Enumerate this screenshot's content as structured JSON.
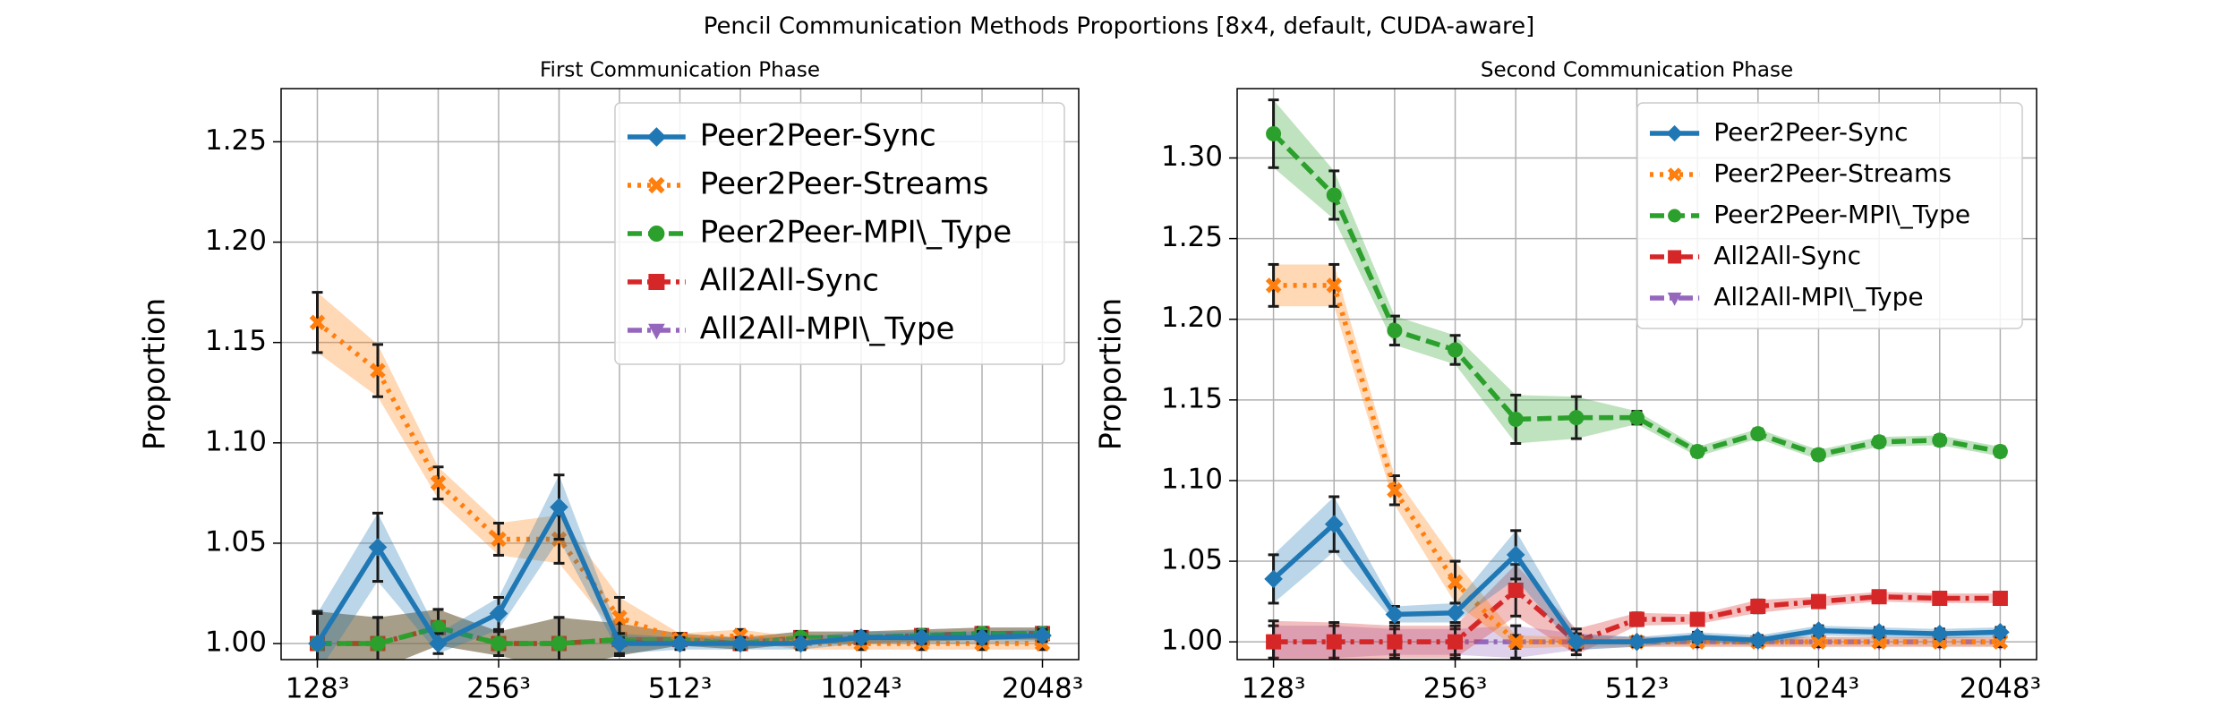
{
  "title": "Pencil Communication Methods Proportions [8x4, default, CUDA-aware]",
  "chart_data": [
    {
      "type": "line",
      "title": "First Communication Phase",
      "y_label": "Proportion",
      "categories": [
        "128³",
        null,
        null,
        "256³",
        null,
        null,
        "512³",
        null,
        null,
        "1024³",
        null,
        null,
        "2048³"
      ],
      "ylim": [
        0.992,
        1.2765
      ],
      "yticks": [
        {
          "value": 1.0,
          "label": "1.00"
        },
        {
          "value": 1.05,
          "label": "1.05"
        },
        {
          "value": 1.1,
          "label": "1.10"
        },
        {
          "value": 1.15,
          "label": "1.15"
        },
        {
          "value": 1.2,
          "label": "1.20"
        },
        {
          "value": 1.25,
          "label": "1.25"
        }
      ],
      "grid": true,
      "legend": "upper right",
      "series": [
        {
          "name": "Peer2Peer-Sync",
          "color": "#1f77b4",
          "marker": "diamond",
          "linestyle": "solid",
          "values": [
            1.0,
            1.048,
            1.0,
            1.015,
            1.068,
            1.0,
            1.0,
            1.0,
            1.0,
            1.003,
            1.003,
            1.003,
            1.004
          ],
          "errors": [
            0.015,
            0.017,
            0.005,
            0.008,
            0.016,
            0.005,
            0.003,
            0.003,
            0.003,
            0.003,
            0.003,
            0.003,
            0.003
          ]
        },
        {
          "name": "Peer2Peer-Streams",
          "color": "#ff7f0e",
          "marker": "x",
          "linestyle": "dotted",
          "values": [
            1.16,
            1.136,
            1.08,
            1.052,
            1.052,
            1.013,
            1.002,
            1.004,
            1.0,
            1.0,
            1.0,
            1.0,
            1.0
          ],
          "errors": [
            0.015,
            0.013,
            0.008,
            0.008,
            0.012,
            0.01,
            0.003,
            0.003,
            0.003,
            0.003,
            0.003,
            0.003,
            0.003
          ]
        },
        {
          "name": "Peer2Peer-MPI\\_Type",
          "color": "#2ca02c",
          "marker": "circle",
          "linestyle": "dashed",
          "values": [
            1.0,
            1.0,
            1.008,
            1.0,
            1.0,
            1.002,
            1.002,
            1.0,
            1.003,
            1.003,
            1.004,
            1.005,
            1.005
          ],
          "errors": [
            0.016,
            0.013,
            0.009,
            0.006,
            0.013,
            0.008,
            0.003,
            0.003,
            0.003,
            0.003,
            0.003,
            0.003,
            0.003
          ]
        },
        {
          "name": "All2All-Sync",
          "color": "#d62728",
          "marker": "square",
          "linestyle": "dashdot",
          "values": [
            1.0,
            1.0,
            1.008,
            1.0,
            1.0,
            1.002,
            1.002,
            1.0,
            1.003,
            1.003,
            1.004,
            1.005,
            1.005
          ],
          "errors": [
            0.016,
            0.013,
            0.009,
            0.006,
            0.013,
            0.008,
            0.003,
            0.003,
            0.003,
            0.003,
            0.003,
            0.003,
            0.003
          ]
        },
        {
          "name": "All2All-MPI\\_Type",
          "color": "#9467bd",
          "marker": "triangle-down",
          "linestyle": "dashdot",
          "values": [
            1.0,
            1.0,
            1.008,
            1.0,
            1.0,
            1.002,
            1.002,
            1.0,
            1.003,
            1.003,
            1.004,
            1.005,
            1.005
          ],
          "errors": [
            0.016,
            0.013,
            0.009,
            0.006,
            0.013,
            0.008,
            0.003,
            0.003,
            0.003,
            0.003,
            0.003,
            0.003,
            0.003
          ]
        }
      ]
    },
    {
      "type": "line",
      "title": "Second Communication Phase",
      "y_label": "Proportion",
      "categories": [
        "128³",
        null,
        null,
        "256³",
        null,
        null,
        "512³",
        null,
        null,
        "1024³",
        null,
        null,
        "2048³"
      ],
      "ylim": [
        0.989,
        1.343
      ],
      "yticks": [
        {
          "value": 1.0,
          "label": "1.00"
        },
        {
          "value": 1.05,
          "label": "1.05"
        },
        {
          "value": 1.1,
          "label": "1.10"
        },
        {
          "value": 1.15,
          "label": "1.15"
        },
        {
          "value": 1.2,
          "label": "1.20"
        },
        {
          "value": 1.25,
          "label": "1.25"
        },
        {
          "value": 1.3,
          "label": "1.30"
        }
      ],
      "grid": true,
      "legend": "upper right",
      "series": [
        {
          "name": "Peer2Peer-Sync",
          "color": "#1f77b4",
          "marker": "diamond",
          "linestyle": "solid",
          "values": [
            1.039,
            1.073,
            1.017,
            1.018,
            1.054,
            1.0,
            1.0,
            1.003,
            1.001,
            1.007,
            1.006,
            1.005,
            1.006
          ],
          "errors": [
            0.015,
            0.017,
            0.005,
            0.006,
            0.015,
            0.005,
            0.003,
            0.003,
            0.003,
            0.003,
            0.003,
            0.003,
            0.003
          ]
        },
        {
          "name": "Peer2Peer-Streams",
          "color": "#ff7f0e",
          "marker": "x",
          "linestyle": "dotted",
          "values": [
            1.221,
            1.221,
            1.094,
            1.037,
            1.0,
            1.0,
            1.0,
            1.0,
            1.0,
            1.0,
            1.0,
            1.0,
            1.0
          ],
          "errors": [
            0.013,
            0.013,
            0.009,
            0.013,
            0.004,
            0.003,
            0.003,
            0.003,
            0.003,
            0.003,
            0.003,
            0.003,
            0.003
          ]
        },
        {
          "name": "Peer2Peer-MPI\\_Type",
          "color": "#2ca02c",
          "marker": "circle",
          "linestyle": "dashed",
          "values": [
            1.315,
            1.277,
            1.193,
            1.181,
            1.138,
            1.139,
            1.139,
            1.118,
            1.129,
            1.116,
            1.124,
            1.125,
            1.118
          ],
          "errors": [
            0.021,
            0.015,
            0.009,
            0.009,
            0.015,
            0.013,
            0.004,
            0.003,
            0.003,
            0.003,
            0.003,
            0.003,
            0.003
          ]
        },
        {
          "name": "All2All-Sync",
          "color": "#d62728",
          "marker": "square",
          "linestyle": "dashdot",
          "values": [
            1.0,
            1.0,
            1.0,
            1.0,
            1.032,
            1.0,
            1.014,
            1.014,
            1.022,
            1.025,
            1.028,
            1.027,
            1.027
          ],
          "errors": [
            0.013,
            0.012,
            0.01,
            0.01,
            0.016,
            0.008,
            0.004,
            0.003,
            0.004,
            0.003,
            0.003,
            0.003,
            0.003
          ]
        },
        {
          "name": "All2All-MPI\\_Type",
          "color": "#9467bd",
          "marker": "triangle-down",
          "linestyle": "dashdot",
          "values": [
            1.0,
            1.0,
            1.0,
            1.0,
            1.0,
            1.0,
            1.0,
            1.0,
            1.0,
            1.0,
            1.0,
            1.0,
            1.0
          ],
          "errors": [
            0.01,
            0.01,
            0.008,
            0.008,
            0.01,
            0.005,
            0.003,
            0.003,
            0.003,
            0.003,
            0.003,
            0.003,
            0.003
          ]
        }
      ]
    }
  ]
}
